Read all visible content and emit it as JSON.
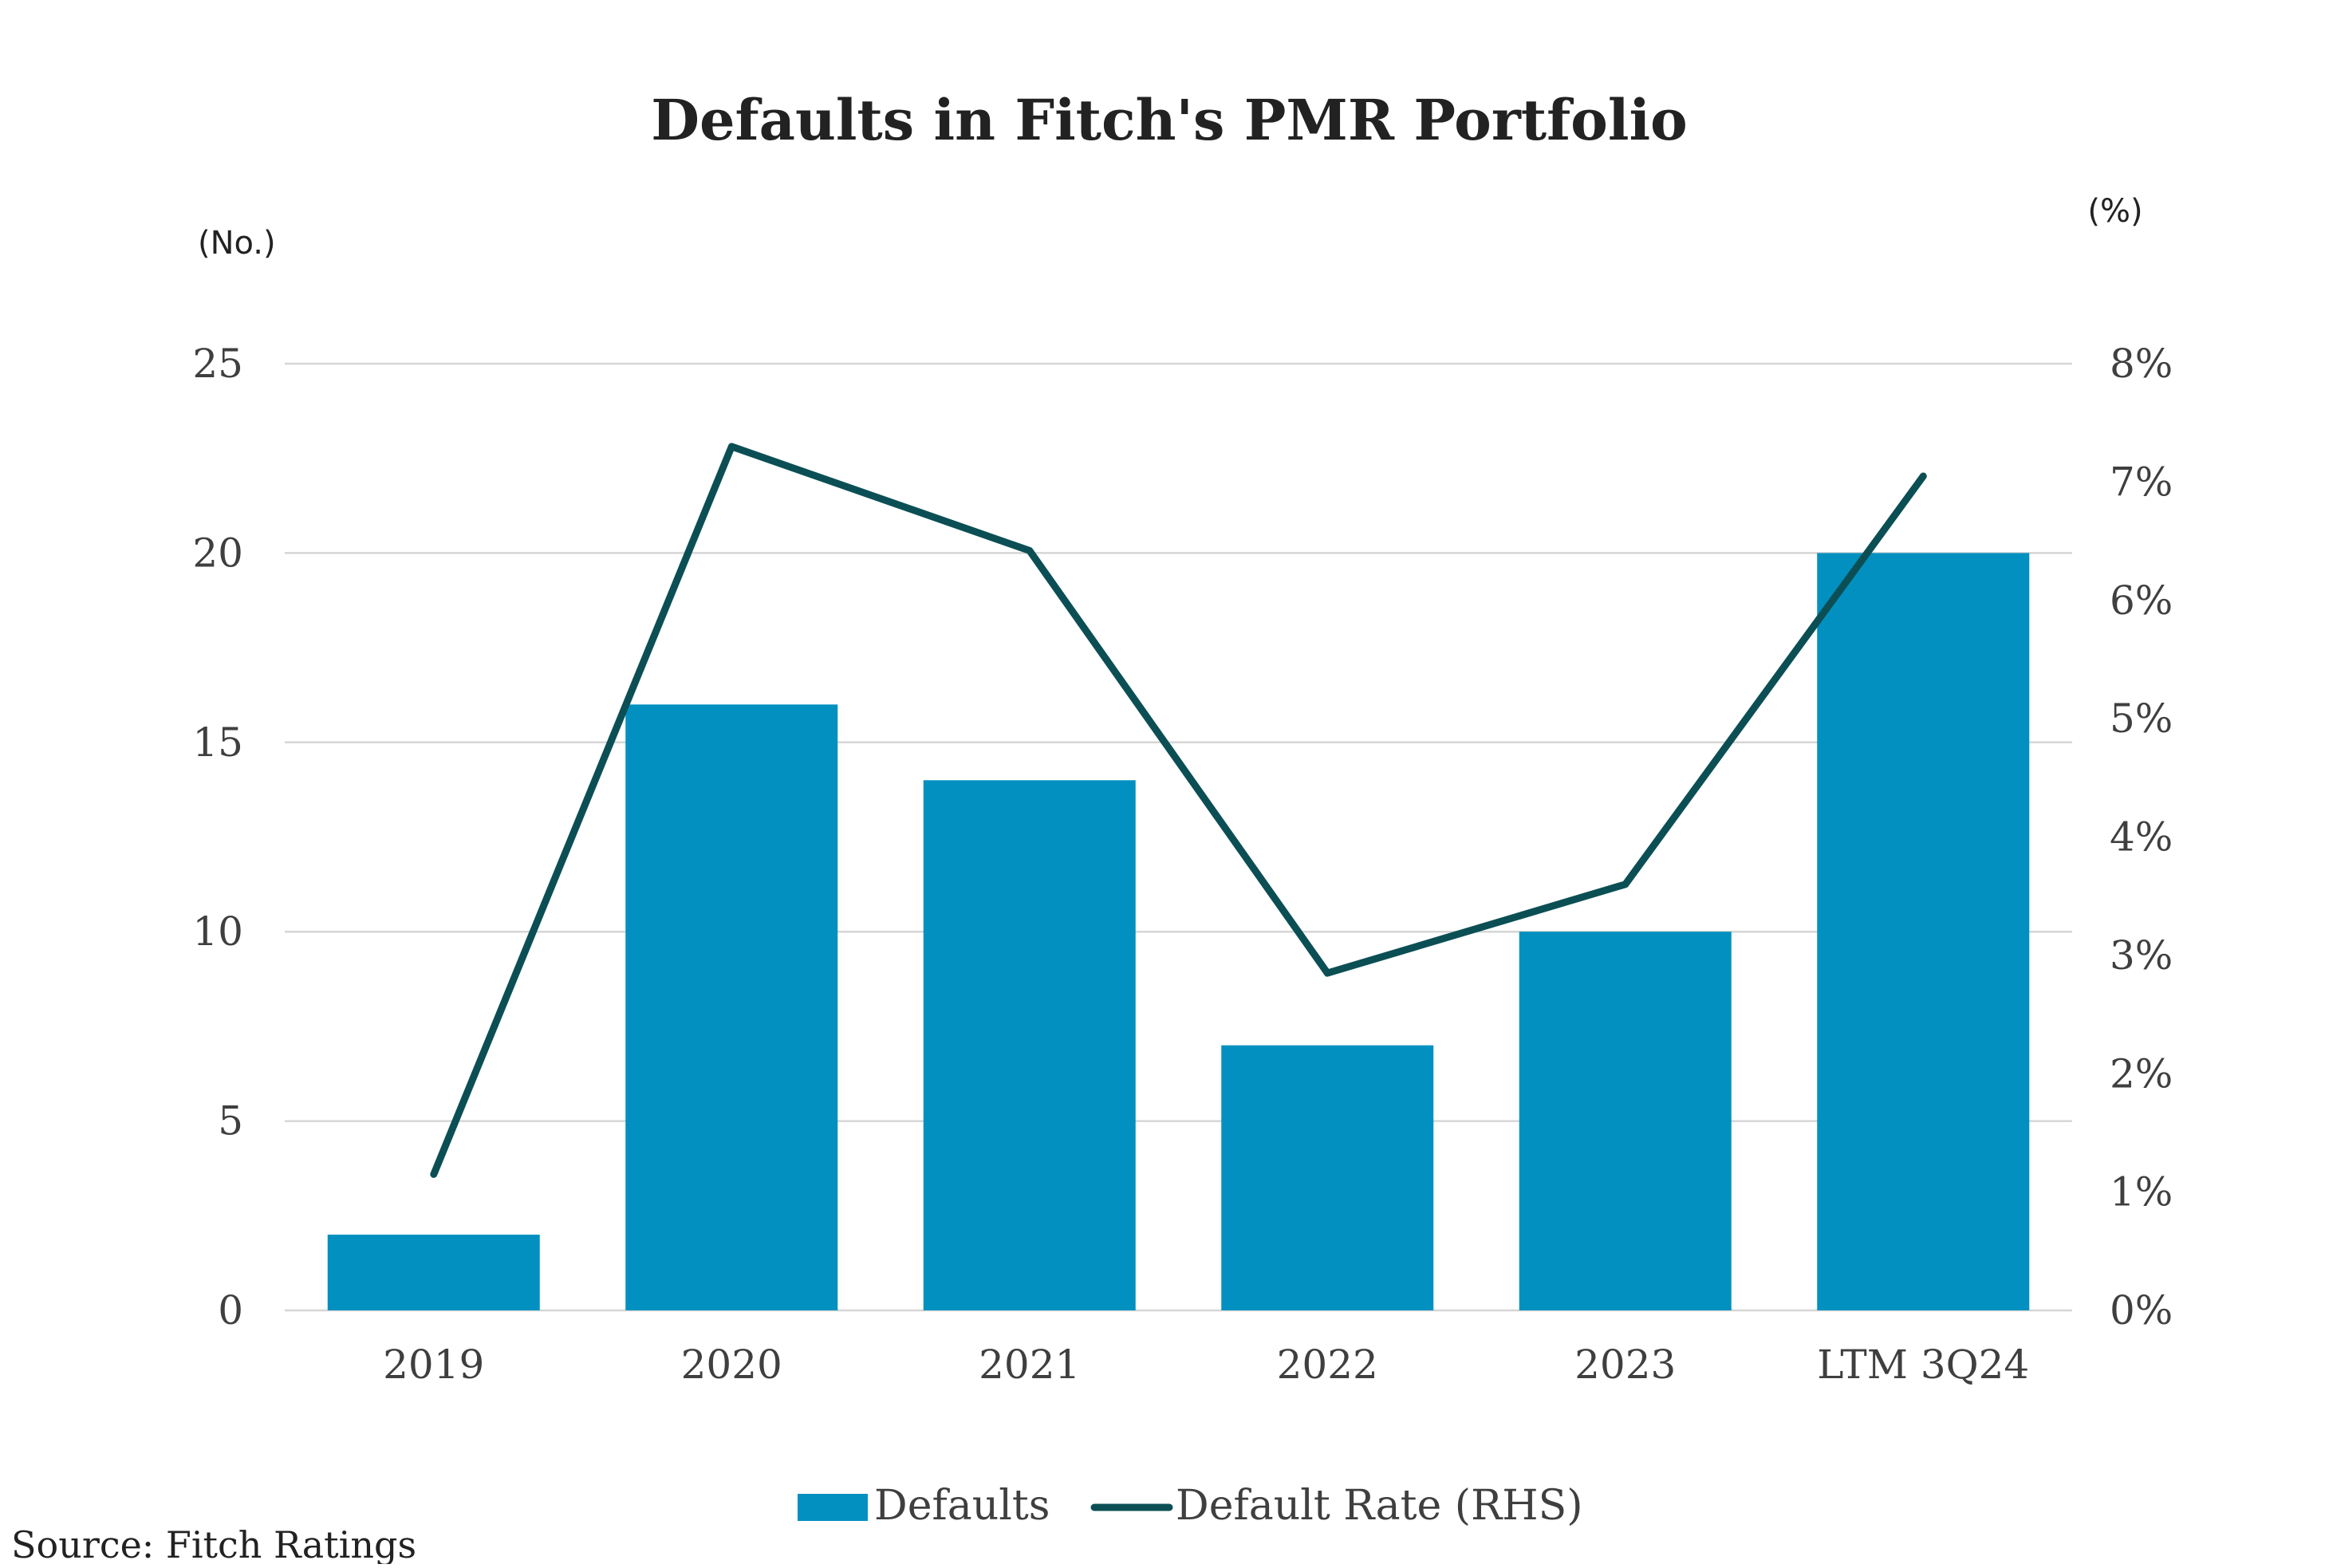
{
  "chart_data": {
    "type": "bar+line",
    "title": "Defaults in Fitch's PMR Portfolio",
    "categories": [
      "2019",
      "2020",
      "2021",
      "2022",
      "2023",
      "LTM 3Q24"
    ],
    "series": [
      {
        "name": "Defaults",
        "type": "bar",
        "axis": "left",
        "values": [
          2,
          16,
          14,
          7,
          10,
          20
        ]
      },
      {
        "name": "Default Rate (RHS)",
        "type": "line",
        "axis": "right",
        "values": [
          1.15,
          7.3,
          6.42,
          2.85,
          3.6,
          7.05
        ]
      }
    ],
    "y_left": {
      "label": "(No.)",
      "min": 0,
      "max": 25,
      "ticks": [
        0,
        5,
        10,
        15,
        20,
        25
      ]
    },
    "y_right": {
      "label": "(%)",
      "min": 0,
      "max": 8,
      "ticks": [
        "0%",
        "1%",
        "2%",
        "3%",
        "4%",
        "5%",
        "6%",
        "7%",
        "8%"
      ]
    },
    "grid": true,
    "legend_position": "bottom-center",
    "colors": {
      "bar": "#0290c0",
      "line": "#0b4f55",
      "grid": "#d6d6d6",
      "text": "#3f3f3f",
      "title": "#222222"
    },
    "source": "Source: Fitch Ratings"
  }
}
